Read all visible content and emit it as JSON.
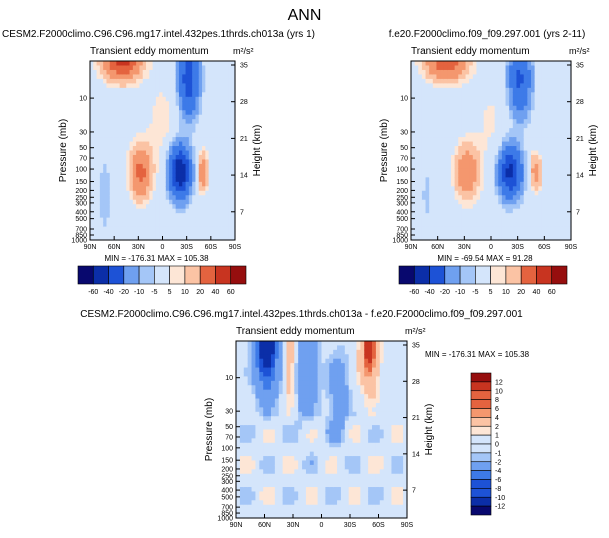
{
  "figure": {
    "title": "ANN"
  },
  "chart_data": [
    {
      "type": "heatmap",
      "run": "CESM2.F2000climo.C96.C96.mg17.intel.432pes.1thrds.ch013a (yrs 1)",
      "subtitle": "Transient eddy momentum",
      "units": "m²/s²",
      "ylabel": "Pressure (mb)",
      "ylabel_right": "Height (km)",
      "xticks": [
        "90N",
        "60N",
        "30N",
        "0",
        "30S",
        "60S",
        "90S"
      ],
      "yticks": [
        "10",
        "30",
        "50",
        "70",
        "100",
        "150",
        "200",
        "250",
        "300",
        "400",
        "500",
        "700",
        "850",
        "1000"
      ],
      "yticks_right": [
        "35",
        "28",
        "21",
        "14",
        "7"
      ],
      "stats": "MIN = -176.31   MAX = 105.38",
      "colorbar_labels": [
        "-60",
        "-40",
        "-20",
        "-10",
        "-5",
        "5",
        "10",
        "20",
        "40",
        "60"
      ],
      "levels": [
        -80,
        -60,
        -40,
        -20,
        -10,
        -5,
        5,
        10,
        20,
        40,
        60,
        80
      ]
    },
    {
      "type": "heatmap",
      "run": "f.e20.F2000climo.f09_f09.297.001 (yrs 2-11)",
      "subtitle": "Transient eddy momentum",
      "units": "m²/s²",
      "ylabel": "Pressure (mb)",
      "ylabel_right": "Height (km)",
      "xticks": [
        "90N",
        "60N",
        "30N",
        "0",
        "30S",
        "60S",
        "90S"
      ],
      "yticks": [
        "10",
        "30",
        "50",
        "70",
        "100",
        "150",
        "200",
        "250",
        "300",
        "400",
        "500",
        "700",
        "850",
        "1000"
      ],
      "yticks_right": [
        "35",
        "28",
        "21",
        "14",
        "7"
      ],
      "stats": "MIN = -69.54   MAX = 91.28",
      "colorbar_labels": [
        "-60",
        "-40",
        "-20",
        "-10",
        "-5",
        "5",
        "10",
        "20",
        "40",
        "60"
      ],
      "levels": [
        -80,
        -60,
        -40,
        -20,
        -10,
        -5,
        5,
        10,
        20,
        40,
        60,
        80
      ]
    },
    {
      "type": "heatmap",
      "run": "CESM2.F2000climo.C96.C96.mg17.intel.432pes.1thrds.ch013a - f.e20.F2000climo.f09_f09.297.001",
      "subtitle": "Transient eddy momentum",
      "units": "m²/s²",
      "ylabel": "Pressure (mb)",
      "ylabel_right": "Height (km)",
      "xticks": [
        "90N",
        "60N",
        "30N",
        "0",
        "30S",
        "60S",
        "90S"
      ],
      "yticks": [
        "10",
        "30",
        "50",
        "70",
        "100",
        "150",
        "200",
        "250",
        "300",
        "400",
        "500",
        "700",
        "850",
        "1000"
      ],
      "yticks_right": [
        "35",
        "28",
        "21",
        "14",
        "7"
      ],
      "stats": "MIN = -176.31   MAX = 105.38",
      "colorbar_labels": [
        "12",
        "10",
        "8",
        "6",
        "4",
        "2",
        "1",
        "0",
        "-1",
        "-2",
        "-4",
        "-6",
        "-8",
        "-10",
        "-12"
      ],
      "levels": [
        -14,
        -12,
        -10,
        -8,
        -6,
        -4,
        -2,
        -1,
        0,
        1,
        2,
        4,
        6,
        8,
        10,
        12,
        14
      ]
    }
  ]
}
